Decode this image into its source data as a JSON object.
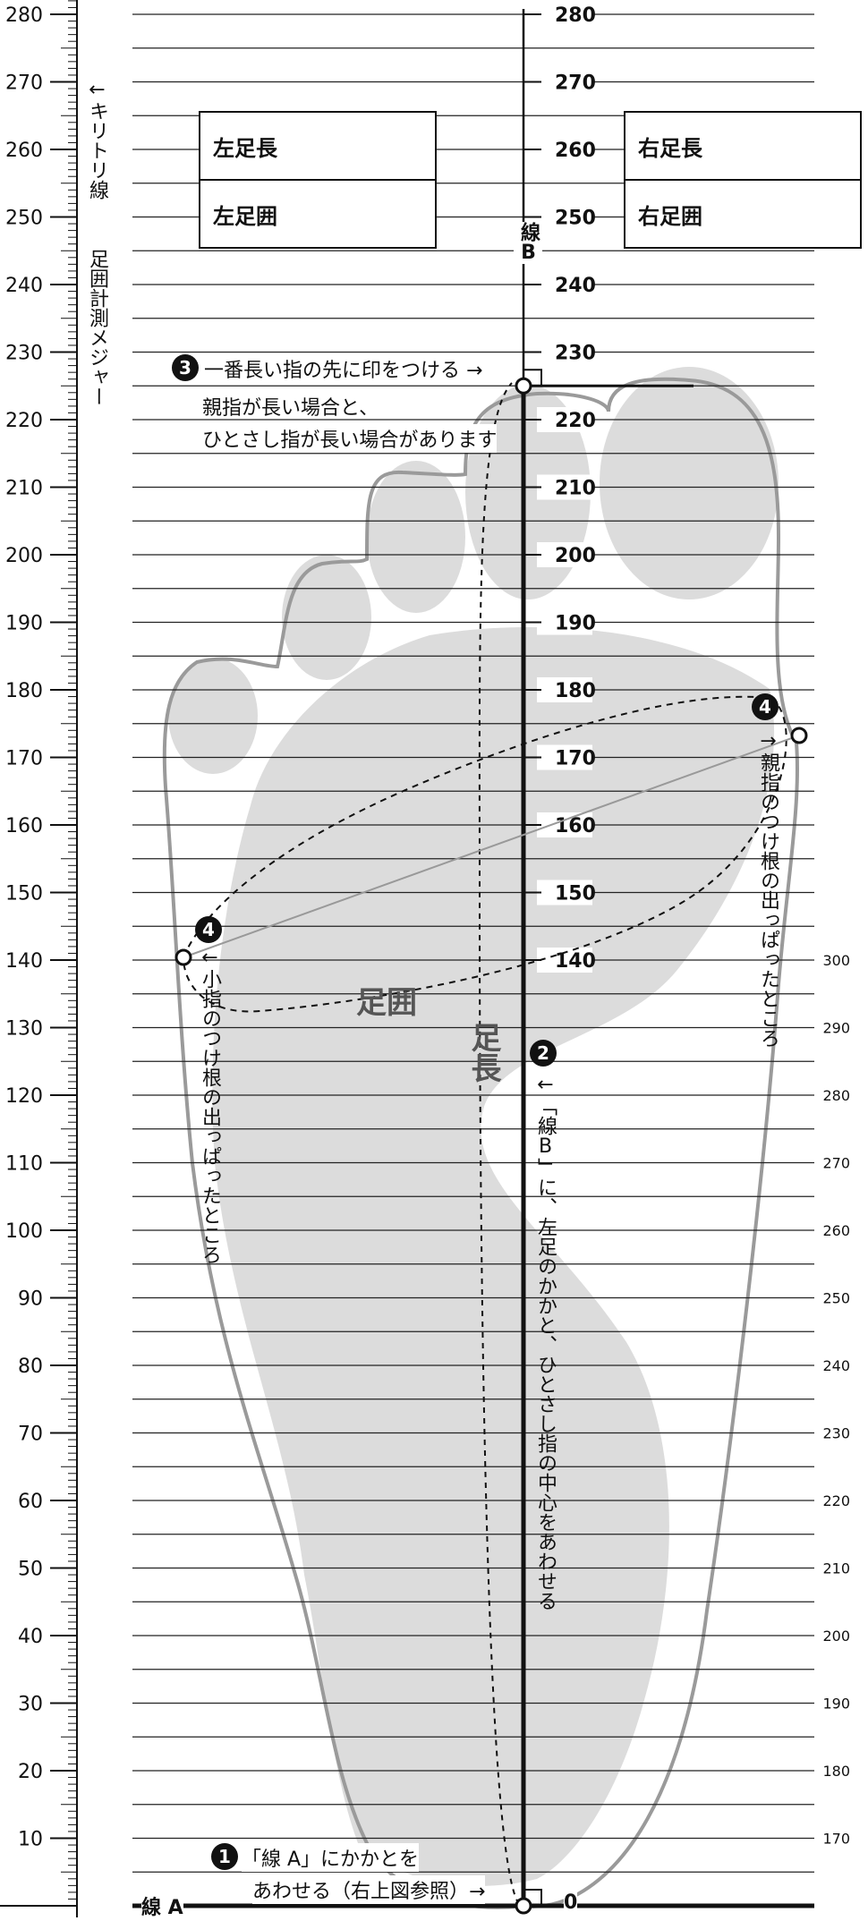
{
  "ruler": {
    "label_numbers": [
      "280",
      "270",
      "260",
      "250",
      "240",
      "230",
      "220",
      "210",
      "200",
      "190",
      "180",
      "170",
      "160",
      "150",
      "140",
      "130",
      "120",
      "110",
      "100",
      "90",
      "80",
      "70",
      "60",
      "50",
      "40",
      "30",
      "20",
      "10"
    ],
    "cut_line_label": "←キリトリ線",
    "measure_label": "足囲計測メジャー"
  },
  "center_scale": {
    "labels": [
      "280",
      "270",
      "260",
      "250",
      "240",
      "230",
      "220",
      "210",
      "200",
      "190",
      "180",
      "170",
      "160",
      "150",
      "140"
    ],
    "zero_label": "0",
    "line_b_label": "線B",
    "line_a_label": "線 A"
  },
  "right_scale": {
    "labels": [
      "300",
      "290",
      "280",
      "270",
      "260",
      "250",
      "240",
      "230",
      "220",
      "210",
      "200",
      "190",
      "180",
      "170"
    ]
  },
  "boxes": {
    "left_length": "左足長",
    "left_girth": "左足囲",
    "right_length": "右足長",
    "right_girth": "右足囲"
  },
  "steps": {
    "step1_num": "1",
    "step1_line1": "「線 A」にかかとを",
    "step1_line2": "あわせる（右上図参照）→",
    "step2_num": "2",
    "step2_text": "←「線B」に、左足のかかと、ひとさし指の中心をあわせる",
    "step3_num": "3",
    "step3_line1": "一番長い指の先に印をつける →",
    "step3_line2": "親指が長い場合と、",
    "step3_line3": "ひとさし指が長い場合があります",
    "step4_num": "4",
    "step4_left_text": "←小指のつけ根の出っぱったところ",
    "step4_right_text": "→親指のつけ根の出っぱったところ"
  },
  "labels": {
    "girth": "足囲",
    "length": "足長"
  },
  "colors": {
    "foot_fill": "#dcdcdc",
    "foot_outline": "#9a9a9a",
    "line": "#111111",
    "grid": "#222222"
  }
}
